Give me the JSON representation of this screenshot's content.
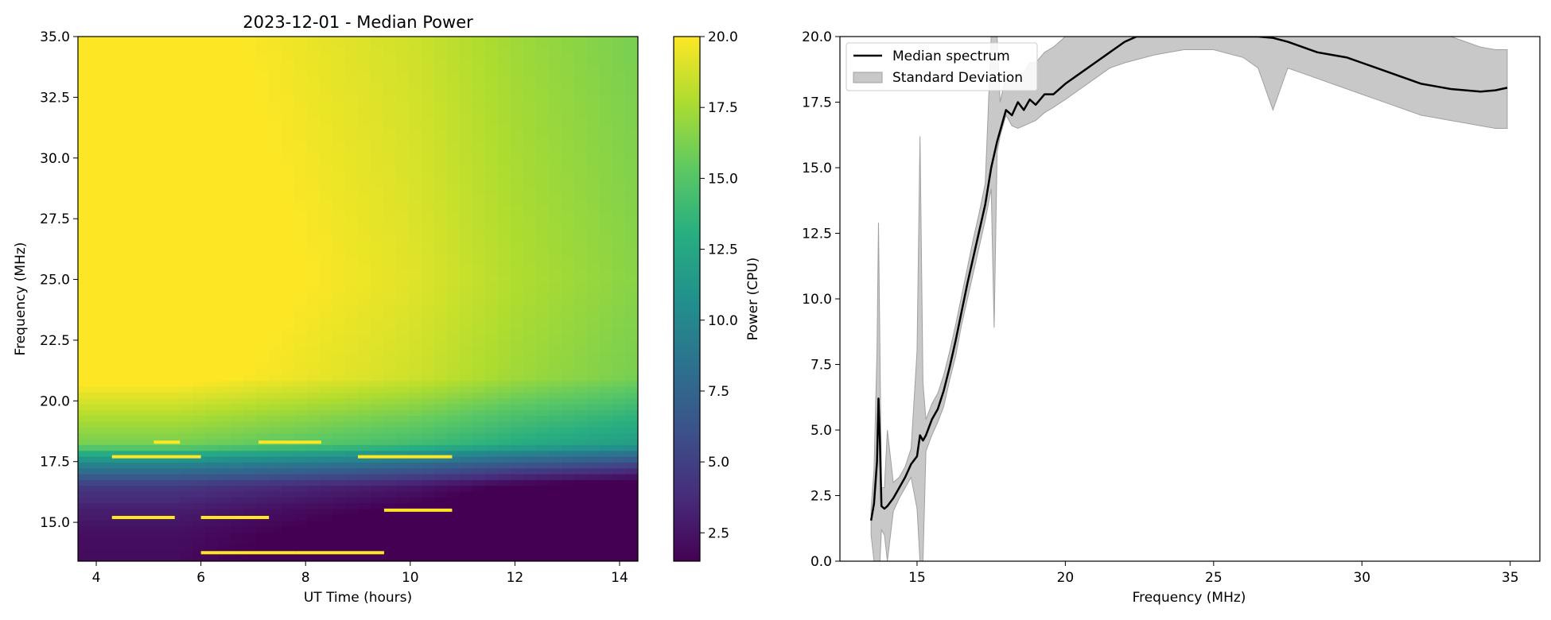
{
  "chart_data": [
    {
      "type": "heatmap",
      "title": "2023-12-01 - Median Power",
      "xlabel": "UT Time (hours)",
      "ylabel": "Frequency (MHz)",
      "xlim": [
        3.65,
        14.35
      ],
      "ylim": [
        13.4,
        35.0
      ],
      "xticks": [
        4,
        6,
        8,
        10,
        12,
        14
      ],
      "xtick_labels": [
        "4",
        "6",
        "8",
        "10",
        "12",
        "14"
      ],
      "yticks": [
        15.0,
        17.5,
        20.0,
        22.5,
        25.0,
        27.5,
        30.0,
        32.5,
        35.0
      ],
      "ytick_labels": [
        "15.0",
        "17.5",
        "20.0",
        "22.5",
        "25.0",
        "27.5",
        "30.0",
        "32.5",
        "35.0"
      ],
      "colormap": "viridis",
      "colorbar": {
        "label": "Power (CPU)",
        "range": [
          1.5,
          20.0
        ],
        "ticks": [
          2.5,
          5.0,
          7.5,
          10.0,
          12.5,
          15.0,
          17.5,
          20.0
        ],
        "tick_labels": [
          "2.5",
          "5.0",
          "7.5",
          "10.0",
          "12.5",
          "15.0",
          "17.5",
          "20.0"
        ]
      },
      "time_profile": [
        {
          "t": 3.65,
          "p": 20.0
        },
        {
          "t": 5.5,
          "p": 20.0
        },
        {
          "t": 7.5,
          "p": 19.2
        },
        {
          "t": 10.0,
          "p": 18.2
        },
        {
          "t": 12.0,
          "p": 16.8
        },
        {
          "t": 14.35,
          "p": 15.6
        }
      ],
      "freq_profile": [
        {
          "f": 13.4,
          "p": 2.0
        },
        {
          "f": 14.5,
          "p": 2.2
        },
        {
          "f": 15.5,
          "p": 3.0
        },
        {
          "f": 16.5,
          "p": 4.5
        },
        {
          "f": 17.2,
          "p": 8.5
        },
        {
          "f": 17.8,
          "p": 12.5
        },
        {
          "f": 18.2,
          "p": 16.0
        },
        {
          "f": 19.5,
          "p": 18.0
        },
        {
          "f": 21.0,
          "p": 20.5
        },
        {
          "f": 25.0,
          "p": 21.0
        },
        {
          "f": 35.0,
          "p": 20.5
        }
      ],
      "interference_streaks": [
        {
          "f": 17.7,
          "t0": 4.3,
          "t1": 6.0
        },
        {
          "f": 17.7,
          "t0": 9.0,
          "t1": 10.8
        },
        {
          "f": 18.3,
          "t0": 5.1,
          "t1": 5.6
        },
        {
          "f": 18.3,
          "t0": 7.1,
          "t1": 8.3
        },
        {
          "f": 15.2,
          "t0": 4.3,
          "t1": 5.5
        },
        {
          "f": 15.2,
          "t0": 6.0,
          "t1": 7.3
        },
        {
          "f": 13.75,
          "t0": 6.0,
          "t1": 7.8
        },
        {
          "f": 13.75,
          "t0": 7.8,
          "t1": 9.5
        },
        {
          "f": 15.5,
          "t0": 9.5,
          "t1": 10.8
        }
      ]
    },
    {
      "type": "line",
      "xlabel": "Frequency (MHz)",
      "ylabel": "",
      "xlim": [
        12.4,
        36.0
      ],
      "ylim": [
        0.0,
        20.0
      ],
      "xticks": [
        15,
        20,
        25,
        30,
        35
      ],
      "xtick_labels": [
        "15",
        "20",
        "25",
        "30",
        "35"
      ],
      "yticks": [
        0.0,
        2.5,
        5.0,
        7.5,
        10.0,
        12.5,
        15.0,
        17.5,
        20.0
      ],
      "ytick_labels": [
        "0.0",
        "2.5",
        "5.0",
        "7.5",
        "10.0",
        "12.5",
        "15.0",
        "17.5",
        "20.0"
      ],
      "legend": {
        "position": "top-left",
        "entries": [
          "Median spectrum",
          "Standard Deviation"
        ]
      },
      "series": [
        {
          "name": "Median spectrum",
          "color": "#000000",
          "x": [
            13.45,
            13.55,
            13.65,
            13.7,
            13.75,
            13.8,
            13.9,
            14.0,
            14.2,
            14.4,
            14.6,
            14.8,
            15.0,
            15.1,
            15.2,
            15.3,
            15.5,
            15.7,
            15.9,
            16.1,
            16.3,
            16.5,
            16.7,
            16.9,
            17.1,
            17.3,
            17.5,
            17.7,
            17.9,
            18.0,
            18.2,
            18.4,
            18.6,
            18.8,
            19.0,
            19.3,
            19.6,
            20.0,
            20.5,
            21.0,
            21.5,
            22.0,
            22.4,
            26.5,
            27.0,
            27.5,
            28.0,
            28.5,
            29.0,
            29.5,
            30.0,
            30.5,
            31.0,
            31.5,
            32.0,
            32.5,
            33.0,
            33.5,
            34.0,
            34.5,
            34.9
          ],
          "y": [
            1.55,
            2.2,
            3.8,
            6.2,
            4.5,
            2.1,
            2.0,
            2.1,
            2.4,
            2.8,
            3.2,
            3.7,
            4.0,
            4.8,
            4.6,
            4.8,
            5.4,
            5.8,
            6.5,
            7.4,
            8.4,
            9.5,
            10.6,
            11.6,
            12.6,
            13.6,
            15.0,
            16.0,
            16.8,
            17.2,
            17.0,
            17.5,
            17.2,
            17.6,
            17.4,
            17.8,
            17.8,
            18.2,
            18.6,
            19.0,
            19.4,
            19.8,
            20.0,
            20.0,
            19.95,
            19.8,
            19.6,
            19.4,
            19.3,
            19.2,
            19.0,
            18.8,
            18.6,
            18.4,
            18.2,
            18.1,
            18.0,
            17.95,
            17.9,
            17.95,
            18.05
          ]
        },
        {
          "name": "Standard Deviation",
          "color": "#c8c8c8",
          "x": [
            13.45,
            13.55,
            13.65,
            13.7,
            13.75,
            13.8,
            13.9,
            14.0,
            14.2,
            14.4,
            14.6,
            14.8,
            15.0,
            15.1,
            15.2,
            15.3,
            15.5,
            15.7,
            15.9,
            16.1,
            16.3,
            16.5,
            16.7,
            16.9,
            17.1,
            17.3,
            17.5,
            17.6,
            17.7,
            17.8,
            17.9,
            18.0,
            18.2,
            18.4,
            18.6,
            18.8,
            19.0,
            19.3,
            19.6,
            20.0,
            20.5,
            21.0,
            21.5,
            22.0,
            23.0,
            24.0,
            25.0,
            26.0,
            26.5,
            27.0,
            27.5,
            28.0,
            28.5,
            29.0,
            29.5,
            30.0,
            30.5,
            31.0,
            31.5,
            32.0,
            32.5,
            33.0,
            33.5,
            34.0,
            34.5,
            34.9
          ],
          "upper": [
            2.0,
            3.5,
            8.0,
            12.9,
            8.0,
            2.8,
            2.8,
            5.0,
            3.0,
            3.2,
            3.6,
            4.3,
            8.0,
            16.2,
            6.8,
            5.4,
            6.0,
            6.4,
            7.1,
            8.0,
            9.0,
            10.1,
            11.2,
            12.3,
            13.3,
            14.4,
            20.0,
            20.0,
            20.0,
            17.5,
            18.0,
            18.4,
            18.2,
            18.6,
            18.6,
            19.0,
            19.0,
            19.4,
            19.6,
            20.0,
            20.0,
            20.0,
            20.0,
            20.0,
            20.0,
            20.0,
            20.0,
            20.0,
            20.0,
            20.0,
            20.0,
            20.0,
            20.0,
            20.0,
            20.0,
            20.0,
            20.0,
            20.0,
            20.0,
            20.0,
            20.0,
            20.0,
            19.8,
            19.6,
            19.5,
            19.5
          ],
          "lower": [
            1.0,
            0.0,
            0.0,
            0.0,
            0.0,
            1.2,
            1.0,
            0.0,
            1.9,
            2.4,
            2.8,
            3.2,
            2.0,
            0.0,
            0.0,
            4.2,
            4.8,
            5.3,
            5.9,
            6.9,
            7.8,
            9.0,
            10.0,
            11.0,
            12.0,
            13.0,
            14.2,
            8.9,
            15.6,
            16.2,
            16.6,
            17.0,
            16.6,
            16.5,
            16.6,
            16.7,
            16.8,
            17.1,
            17.3,
            17.6,
            18.0,
            18.4,
            18.8,
            19.0,
            19.3,
            19.5,
            19.5,
            19.2,
            18.8,
            17.2,
            18.8,
            18.6,
            18.4,
            18.2,
            18.0,
            17.8,
            17.6,
            17.4,
            17.2,
            17.0,
            16.9,
            16.8,
            16.7,
            16.6,
            16.5,
            16.5
          ]
        }
      ]
    }
  ]
}
